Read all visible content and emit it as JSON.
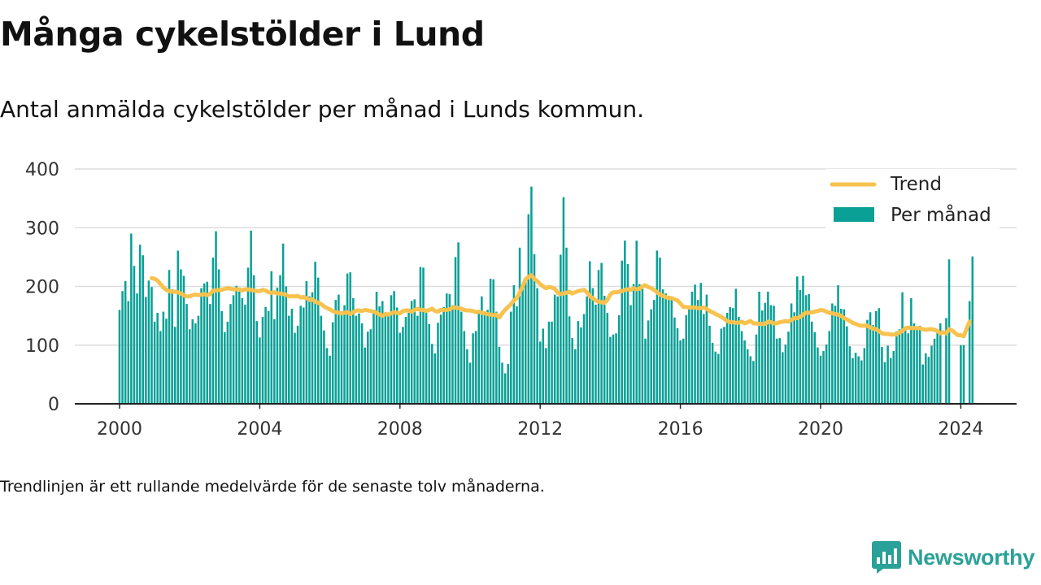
{
  "title": "Många cykelstölder i Lund",
  "subtitle": "Antal anmälda cykelstölder per månad i Lunds kommun.",
  "note": "Trendlinjen är ett rullande medelvärde för de senaste tolv månaderna.",
  "brand": {
    "name": "Newsworthy",
    "icon": "newsworthy-logo-icon"
  },
  "colors": {
    "bars": "#0aa096",
    "trend": "#f8c24e",
    "grid": "#dddddd",
    "axis": "#222222",
    "brand": "#2aa198"
  },
  "chart_data": {
    "type": "bar",
    "title": "Många cykelstölder i Lund",
    "ylim": [
      0,
      400
    ],
    "y_ticks": [
      "0",
      "100",
      "200",
      "300",
      "400"
    ],
    "x_ticks": [
      "2000",
      "2004",
      "2008",
      "2012",
      "2016",
      "2020",
      "2024"
    ],
    "grid": true,
    "legend_position": "top-right",
    "start": "2000-01",
    "end": "2024-05",
    "series": [
      {
        "name": "Per månad",
        "type": "bar",
        "values": [
          160,
          192,
          209,
          175,
          290,
          235,
          188,
          271,
          253,
          182,
          210,
          199,
          140,
          155,
          124,
          157,
          145,
          228,
          195,
          131,
          261,
          229,
          218,
          170,
          127,
          144,
          137,
          150,
          197,
          205,
          208,
          170,
          249,
          294,
          229,
          158,
          122,
          140,
          170,
          185,
          201,
          191,
          180,
          169,
          232,
          295,
          219,
          141,
          113,
          148,
          165,
          158,
          226,
          144,
          198,
          219,
          273,
          200,
          150,
          162,
          121,
          133,
          167,
          164,
          209,
          183,
          190,
          242,
          215,
          150,
          125,
          95,
          82,
          139,
          177,
          186,
          157,
          168,
          222,
          224,
          180,
          150,
          154,
          137,
          96,
          123,
          127,
          155,
          191,
          166,
          175,
          156,
          151,
          185,
          192,
          164,
          121,
          131,
          148,
          155,
          175,
          178,
          150,
          233,
          232,
          160,
          136,
          102,
          86,
          138,
          152,
          165,
          188,
          187,
          168,
          250,
          275,
          157,
          124,
          93,
          70,
          120,
          124,
          156,
          183,
          154,
          160,
          213,
          212,
          157,
          97,
          70,
          52,
          68,
          157,
          202,
          166,
          266,
          205,
          213,
          323,
          370,
          255,
          197,
          106,
          128,
          95,
          140,
          140,
          186,
          183,
          254,
          352,
          266,
          149,
          112,
          93,
          141,
          130,
          153,
          183,
          243,
          197,
          169,
          228,
          240,
          184,
          155,
          114,
          118,
          120,
          151,
          244,
          278,
          238,
          168,
          204,
          278,
          204,
          196,
          111,
          142,
          161,
          177,
          261,
          249,
          195,
          188,
          184,
          180,
          147,
          129,
          108,
          111,
          151,
          165,
          191,
          203,
          177,
          206,
          153,
          186,
          133,
          104,
          89,
          85,
          128,
          131,
          155,
          165,
          163,
          196,
          148,
          124,
          108,
          93,
          81,
          73,
          118,
          191,
          159,
          172,
          191,
          168,
          167,
          111,
          112,
          88,
          101,
          123,
          171,
          156,
          217,
          194,
          218,
          185,
          187,
          140,
          122,
          96,
          82,
          90,
          101,
          124,
          171,
          167,
          202,
          162,
          161,
          132,
          98,
          78,
          87,
          81,
          74,
          95,
          143,
          156,
          134,
          158,
          163,
          97,
          71,
          99,
          78,
          90,
          123,
          127,
          190,
          128,
          120,
          180,
          137,
          130,
          133,
          67,
          86,
          80,
          99,
          111,
          126,
          137,
          0,
          146,
          246,
          0,
          0,
          0,
          100,
          100,
          0,
          175,
          251
        ]
      },
      {
        "name": "Trend",
        "type": "line",
        "start": "2000-12",
        "values": [
          214,
          213,
          210,
          204,
          198,
          194,
          192,
          191,
          191,
          190,
          188,
          185,
          183,
          183,
          185,
          186,
          185,
          186,
          187,
          185,
          187,
          193,
          193,
          194,
          194,
          196,
          197,
          196,
          195,
          195,
          195,
          193,
          195,
          195,
          194,
          193,
          192,
          192,
          194,
          193,
          190,
          189,
          190,
          188,
          188,
          187,
          186,
          183,
          183,
          183,
          184,
          181,
          182,
          180,
          177,
          178,
          174,
          172,
          170,
          166,
          163,
          161,
          158,
          156,
          155,
          154,
          155,
          156,
          153,
          156,
          159,
          159,
          158,
          160,
          159,
          158,
          157,
          155,
          152,
          150,
          153,
          152,
          154,
          156,
          155,
          154,
          158,
          159,
          159,
          157,
          160,
          162,
          160,
          160,
          158,
          160,
          162,
          158,
          157,
          160,
          160,
          160,
          161,
          164,
          164,
          163,
          162,
          160,
          159,
          159,
          158,
          156,
          157,
          155,
          154,
          153,
          152,
          151,
          152,
          147,
          154,
          160,
          165,
          170,
          176,
          180,
          190,
          200,
          212,
          216,
          219,
          213,
          209,
          204,
          200,
          197,
          199,
          198,
          196,
          189,
          187,
          188,
          189,
          191,
          188,
          190,
          192,
          193,
          194,
          190,
          183,
          180,
          176,
          174,
          173,
          172,
          177,
          186,
          190,
          190,
          191,
          192,
          194,
          195,
          194,
          197,
          195,
          196,
          200,
          202,
          199,
          197,
          194,
          190,
          186,
          184,
          182,
          180,
          180,
          178,
          176,
          171,
          165,
          165,
          164,
          164,
          164,
          163,
          163,
          164,
          162,
          158,
          156,
          153,
          151,
          148,
          145,
          141,
          139,
          139,
          138,
          138,
          140,
          137,
          139,
          141,
          137,
          137,
          136,
          136,
          136,
          140,
          139,
          137,
          137,
          139,
          140,
          141,
          140,
          143,
          146,
          146,
          148,
          152,
          155,
          155,
          156,
          157,
          158,
          160,
          159,
          157,
          155,
          154,
          153,
          152,
          150,
          146,
          144,
          141,
          138,
          136,
          134,
          133,
          133,
          133,
          130,
          128,
          127,
          124,
          120,
          119,
          119,
          118,
          118,
          118,
          122,
          124,
          129,
          130,
          129,
          129,
          129,
          129,
          127,
          126,
          127,
          127,
          126,
          124,
          120,
          122,
          120,
          127,
          125,
          121,
          117,
          117,
          115,
          128,
          140
        ]
      }
    ]
  }
}
